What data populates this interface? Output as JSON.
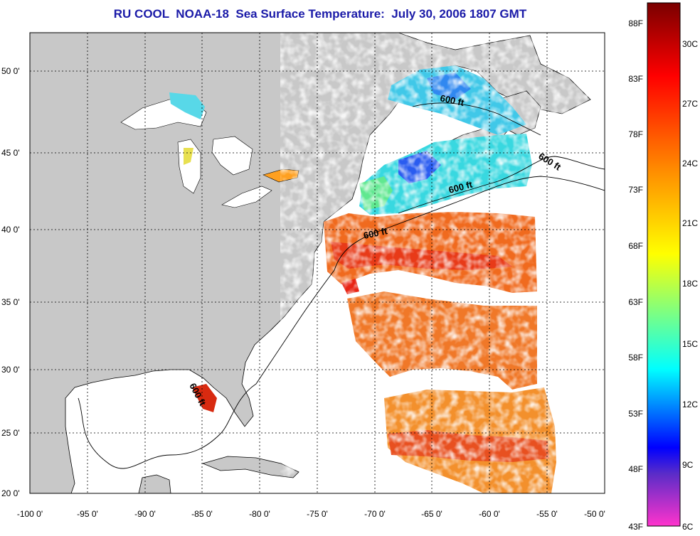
{
  "title": "RU COOL  NOAA-18  Sea Surface Temperature:  July 30, 2006 1807 GMT",
  "map": {
    "lon_labels": [
      "-100 0'",
      "-95 0'",
      "-90 0'",
      "-85 0'",
      "-80 0'",
      "-75 0'",
      "-70 0'",
      "-65 0'",
      "-60 0'",
      "-55 0'",
      "-50 0'"
    ],
    "lat_labels": [
      "50 0'",
      "45 0'",
      "40 0'",
      "35 0'",
      "30 0'",
      "25 0'",
      "20 0'"
    ],
    "contour_labels": [
      "600 ft",
      "600 ft",
      "600 ft",
      "600 ft",
      "600 ft"
    ],
    "colors": {
      "land": "#c8c8c8",
      "ocean_nodata": "#ffffff",
      "cold_water": "#2a6ef0",
      "cool_water": "#36c8e8",
      "warm_water": "#f0641e",
      "hot_water": "#e83218"
    }
  },
  "colorbar": {
    "fahrenheit_labels": [
      "88F",
      "83F",
      "78F",
      "73F",
      "68F",
      "63F",
      "58F",
      "53F",
      "48F",
      "43F"
    ],
    "celsius_labels": [
      "30C",
      "27C",
      "24C",
      "21C",
      "18C",
      "15C",
      "12C",
      "9C",
      "6C"
    ],
    "gradient_stops": [
      "#7a0000",
      "#ff0000",
      "#ff8c00",
      "#ffff00",
      "#00ffff",
      "#0000ff",
      "#ff33cc"
    ]
  }
}
